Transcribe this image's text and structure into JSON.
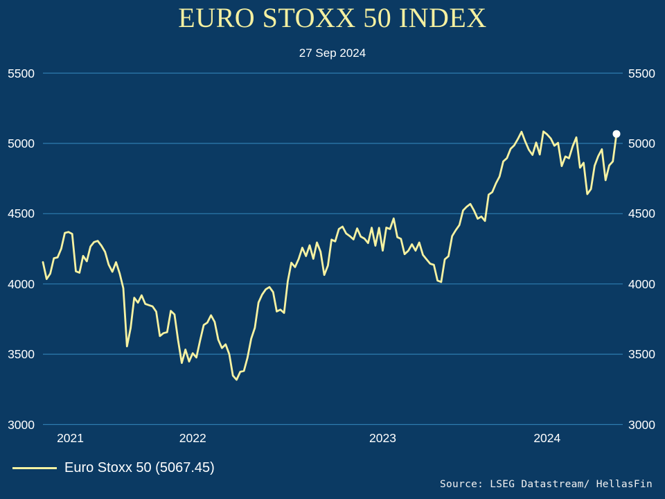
{
  "title": "EURO STOXX 50 INDEX",
  "subtitle": "27 Sep 2024",
  "legend": {
    "label": "Euro Stoxx 50 (5067.45)"
  },
  "source": "Source: LSEG Datastream/ HellasFin",
  "colors": {
    "background": "#0b3a63",
    "grid": "#2e7cb0",
    "line": "#f6f2a2",
    "title": "#f5f0a0",
    "text": "#ffffff",
    "end_marker": "#ffffff"
  },
  "chart_data": {
    "type": "line",
    "title": "EURO STOXX 50 INDEX",
    "subtitle": "27 Sep 2024",
    "ylabel": "",
    "xlabel": "",
    "ylim": [
      3000,
      5500
    ],
    "y_ticks": [
      5500,
      5000,
      4500,
      4000,
      3500,
      3000
    ],
    "grid": true,
    "legend_position": "bottom-left",
    "end_marker": "white-dot",
    "last_value": 5067.45,
    "x_tick_labels": [
      "2021",
      "2022",
      "2023",
      "2024"
    ],
    "years": [
      {
        "label": "2021",
        "start_index": 0,
        "end_index": 15
      },
      {
        "label": "2022",
        "start_index": 15,
        "end_index": 67
      },
      {
        "label": "2023",
        "start_index": 67,
        "end_index": 119
      },
      {
        "label": "2024",
        "start_index": 119,
        "end_index": 157
      }
    ],
    "series": [
      {
        "name": "Euro Stoxx 50",
        "values": [
          4155,
          4035,
          4073,
          4183,
          4189,
          4251,
          4363,
          4370,
          4356,
          4090,
          4080,
          4199,
          4161,
          4266,
          4298,
          4306,
          4272,
          4228,
          4137,
          4087,
          4155,
          4074,
          3970,
          3556,
          3687,
          3902,
          3867,
          3919,
          3858,
          3849,
          3840,
          3803,
          3629,
          3650,
          3657,
          3808,
          3783,
          3599,
          3438,
          3533,
          3448,
          3507,
          3477,
          3596,
          3708,
          3725,
          3777,
          3730,
          3603,
          3544,
          3570,
          3500,
          3348,
          3318,
          3375,
          3381,
          3476,
          3610,
          3688,
          3868,
          3924,
          3962,
          3978,
          3942,
          3804,
          3817,
          3794,
          4018,
          4151,
          4120,
          4178,
          4258,
          4198,
          4275,
          4179,
          4295,
          4229,
          4064,
          4131,
          4315,
          4303,
          4391,
          4408,
          4359,
          4340,
          4317,
          4395,
          4337,
          4323,
          4291,
          4400,
          4272,
          4399,
          4237,
          4401,
          4391,
          4466,
          4333,
          4321,
          4212,
          4236,
          4282,
          4237,
          4295,
          4207,
          4175,
          4144,
          4136,
          4024,
          4014,
          4175,
          4197,
          4340,
          4382,
          4419,
          4523,
          4550,
          4569,
          4522,
          4464,
          4480,
          4448,
          4635,
          4654,
          4716,
          4765,
          4872,
          4895,
          4961,
          4986,
          5031,
          5083,
          5014,
          4955,
          4918,
          5006,
          4921,
          5085,
          5064,
          5035,
          4983,
          5004,
          4839,
          4907,
          4894,
          4979,
          5043,
          4827,
          4862,
          4639,
          4675,
          4841,
          4909,
          4958,
          4738,
          4843,
          4872,
          5067.45
        ]
      }
    ]
  }
}
